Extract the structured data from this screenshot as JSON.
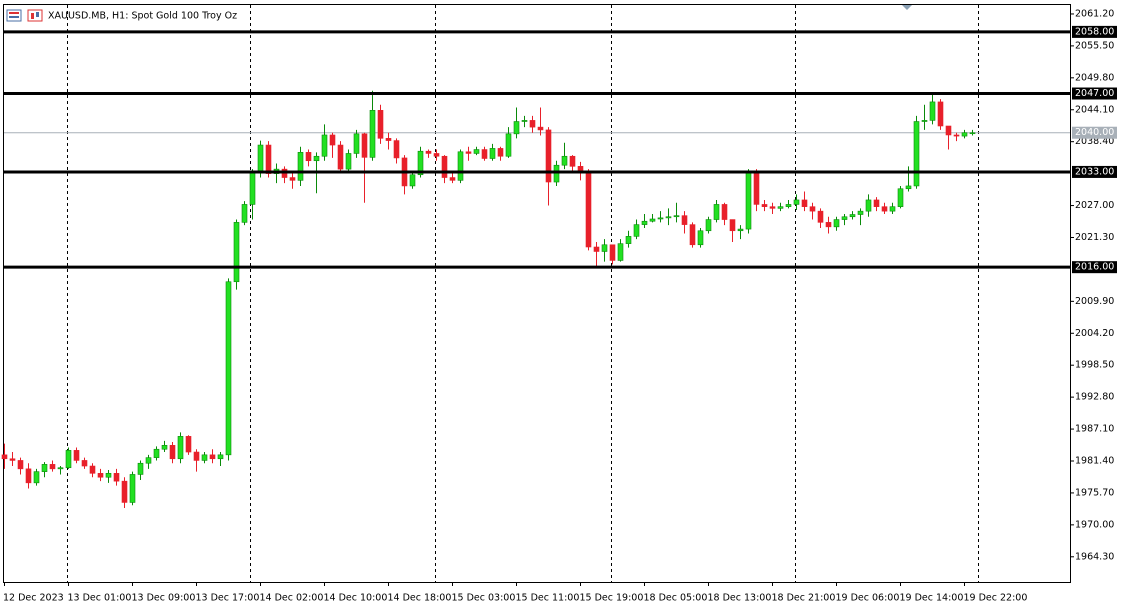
{
  "chart_data": {
    "type": "candlestick",
    "title": "XAUUSD.MB, H1:  Spot Gold 100 Troy Oz",
    "categories": [
      "12 Dec 2023",
      null,
      null,
      null,
      null,
      null,
      null,
      null,
      "13 Dec 01:00",
      null,
      null,
      null,
      null,
      null,
      null,
      null,
      "13 Dec 09:00",
      null,
      null,
      null,
      null,
      null,
      null,
      null,
      "13 Dec 17:00",
      null,
      null,
      null,
      null,
      null,
      null,
      null,
      "14 Dec 02:00",
      null,
      null,
      null,
      null,
      null,
      null,
      null,
      "14 Dec 10:00",
      null,
      null,
      null,
      null,
      null,
      null,
      null,
      "14 Dec 18:00",
      null,
      null,
      null,
      null,
      null,
      null,
      null,
      "15 Dec 03:00",
      null,
      null,
      null,
      null,
      null,
      null,
      null,
      "15 Dec 11:00",
      null,
      null,
      null,
      null,
      null,
      null,
      null,
      "15 Dec 19:00",
      null,
      null,
      null,
      null,
      null,
      null,
      null,
      "18 Dec 05:00",
      null,
      null,
      null,
      null,
      null,
      null,
      null,
      "18 Dec 13:00",
      null,
      null,
      null,
      null,
      null,
      null,
      null,
      "18 Dec 21:00",
      null,
      null,
      null,
      null,
      null,
      null,
      null,
      "19 Dec 06:00",
      null,
      null,
      null,
      null,
      null,
      null,
      null,
      "19 Dec 14:00",
      null,
      null,
      null,
      null,
      null,
      null,
      null,
      "19 Dec 22:00",
      null
    ],
    "open": [
      1982.5,
      1981.8,
      1981.5,
      1980,
      1977.5,
      1979.5,
      1980.8,
      1980,
      1980.2,
      1983.3,
      1981.5,
      1980.5,
      1979.2,
      1978.5,
      1979.2,
      1977.8,
      1974,
      1979,
      1981,
      1982,
      1983.5,
      1984.2,
      1981.8,
      1985.8,
      1983,
      1981.5,
      1982.5,
      1981.8,
      1982.5,
      2013.4,
      2024,
      2027.2,
      2033,
      2037.8,
      2032.7,
      2033.5,
      2032,
      2031.5,
      2036.5,
      2035,
      2035.8,
      2039.6,
      2037.8,
      2033.5,
      2036.3,
      2039.8,
      2035.6,
      2044,
      2039,
      2038.6,
      2035.5,
      2030.5,
      2032.5,
      2036.7,
      2036.3,
      2035.8,
      2032,
      2031.5,
      2036.6,
      2036.3,
      2037,
      2035.4,
      2037.2,
      2035.8,
      2039.8,
      2042,
      2042.2,
      2041,
      2040.5,
      2031.2,
      2034.2,
      2035.8,
      2034,
      2033.2,
      2019.6,
      2018.8,
      2020,
      2017.2,
      2020.2,
      2021.5,
      2023.6,
      2024.2,
      2024.6,
      2024.8,
      2025,
      2025.2,
      2023.6,
      2020,
      2022.5,
      2024.5,
      2027.2,
      2024.5,
      2022.5,
      2022.8,
      2033.2,
      2027.2,
      2026.8,
      2026.5,
      2026.8,
      2027.2,
      2028,
      2026.8,
      2026,
      2024,
      2023.2,
      2024.5,
      2025,
      2025.4,
      2026,
      2028,
      2026.8,
      2026,
      2026.8,
      2030,
      2030.5,
      2042,
      2042.2,
      2045.5,
      2041.2,
      2039.6,
      2039.4,
      2040
    ],
    "high": [
      1984.5,
      1983,
      1982,
      1981,
      1980,
      1981.2,
      1981.5,
      1980.5,
      1983.8,
      1983.8,
      1982,
      1981,
      1980,
      1979.8,
      1980,
      1978.5,
      1979.5,
      1981.5,
      1982.5,
      1984,
      1985,
      1984.8,
      1986.5,
      1986,
      1983.5,
      1983,
      1983.5,
      1983,
      2014,
      2024.5,
      2027.8,
      2033.5,
      2038.6,
      2038.5,
      2034.5,
      2034,
      2033,
      2037.5,
      2037,
      2036.5,
      2041.5,
      2040,
      2038.5,
      2037,
      2040.5,
      2040,
      2047.5,
      2045,
      2040,
      2039,
      2036,
      2033,
      2037.5,
      2037,
      2037,
      2036,
      2033,
      2037,
      2037.5,
      2037.5,
      2037.5,
      2038,
      2037.5,
      2041,
      2044.5,
      2043,
      2043,
      2044.5,
      2041,
      2035,
      2038.2,
      2036,
      2034.8,
      2033.5,
      2020.5,
      2021,
      2020,
      2021,
      2022.5,
      2024.5,
      2025.5,
      2025.5,
      2026,
      2026.5,
      2027.5,
      2026,
      2024,
      2023,
      2025,
      2028,
      2027.5,
      2024.5,
      2023.5,
      2033.5,
      2033.5,
      2028,
      2027.5,
      2027.5,
      2028,
      2029,
      2029.5,
      2027.5,
      2026.5,
      2025,
      2025,
      2025.5,
      2026,
      2026.5,
      2029,
      2028.5,
      2027.5,
      2027.5,
      2030.5,
      2034,
      2043,
      2045,
      2047,
      2046,
      2041,
      2040,
      2040.5,
      2040.5
    ],
    "low": [
      1980,
      1980.5,
      1979,
      1976.5,
      1977,
      1978.5,
      1979.5,
      1979,
      1980,
      1981,
      1980,
      1978.5,
      1977.8,
      1977.5,
      1977,
      1973,
      1973.5,
      1978,
      1980,
      1981.5,
      1983,
      1981,
      1981,
      1982.5,
      1979.5,
      1981,
      1981,
      1980.5,
      1981.5,
      2012,
      2023.5,
      2024.5,
      2032,
      2032,
      2031,
      2031,
      2030,
      2030.5,
      2034,
      2029.2,
      2035,
      2035.5,
      2033,
      2033,
      2035.5,
      2027.5,
      2035,
      2038,
      2037,
      2034.5,
      2029,
      2030,
      2032,
      2035.5,
      2035,
      2031,
      2031,
      2031,
      2035,
      2036,
      2035,
      2035,
      2035,
      2035.5,
      2039,
      2041,
      2040,
      2039.5,
      2027,
      2030.5,
      2033.5,
      2033,
      2031.5,
      2019,
      2016,
      2017,
      2016.5,
      2017,
      2019.5,
      2021,
      2023,
      2024,
      2024,
      2023.5,
      2024,
      2022,
      2019.5,
      2019.5,
      2022,
      2024,
      2023.5,
      2020.5,
      2021,
      2022,
      2026,
      2026,
      2025.5,
      2026,
      2026.5,
      2026.2,
      2026,
      2024.5,
      2023,
      2022,
      2022.5,
      2023.5,
      2024.5,
      2023.5,
      2025,
      2026,
      2025.5,
      2025.5,
      2026.5,
      2029.5,
      2030,
      2040.5,
      2041.5,
      2040.5,
      2037,
      2038.5,
      2039,
      2039.5
    ],
    "close": [
      1981.8,
      1981.5,
      1980,
      1977.5,
      1979.5,
      1980.8,
      1980,
      1980.2,
      1983.3,
      1981.5,
      1980.5,
      1979.2,
      1978.5,
      1979.2,
      1977.8,
      1974,
      1979,
      1981,
      1982,
      1983.5,
      1984.2,
      1981.8,
      1985.8,
      1983,
      1981.5,
      1982.5,
      1981.8,
      1982.5,
      2013.4,
      2024,
      2027.2,
      2033,
      2037.8,
      2032.7,
      2033.5,
      2032,
      2031.5,
      2036.5,
      2035,
      2035.8,
      2039.6,
      2037.8,
      2033.5,
      2036.3,
      2039.8,
      2035.6,
      2044,
      2039,
      2038.6,
      2035.5,
      2030.5,
      2032.5,
      2036.7,
      2036.3,
      2035.8,
      2032,
      2031.5,
      2036.6,
      2036.3,
      2037,
      2035.4,
      2037.2,
      2035.8,
      2039.8,
      2042,
      2042.2,
      2041,
      2040.5,
      2031.2,
      2034.2,
      2035.8,
      2034,
      2033.2,
      2019.6,
      2018.8,
      2020,
      2017.2,
      2020.2,
      2021.5,
      2023.6,
      2024.2,
      2024.6,
      2024.8,
      2025,
      2025.2,
      2023.6,
      2020,
      2022.5,
      2024.5,
      2027.2,
      2024.5,
      2022.5,
      2022.8,
      2033.2,
      2027.2,
      2026.8,
      2026.5,
      2026.8,
      2027.2,
      2028,
      2026.8,
      2026,
      2024,
      2023.2,
      2024.5,
      2025,
      2025.4,
      2026,
      2028,
      2026.8,
      2026,
      2026.8,
      2030,
      2030.5,
      2042,
      2042.2,
      2045.5,
      2041.2,
      2039.6,
      2039.4,
      2040,
      2040
    ],
    "up_color": "#22e022",
    "down_color": "#e8202a",
    "ylim": [
      1959.8,
      2062.8
    ],
    "yticks": [
      {
        "value": 1964.3,
        "label": "1964.30"
      },
      {
        "value": 1970,
        "label": "1970.00"
      },
      {
        "value": 1975.7,
        "label": "1975.70"
      },
      {
        "value": 1981.4,
        "label": "1981.40"
      },
      {
        "value": 1987.1,
        "label": "1987.10"
      },
      {
        "value": 1992.8,
        "label": "1992.80"
      },
      {
        "value": 1998.5,
        "label": "1998.50"
      },
      {
        "value": 2004.2,
        "label": "2004.20"
      },
      {
        "value": 2009.9,
        "label": "2009.90"
      },
      {
        "value": 2021.3,
        "label": "2021.30"
      },
      {
        "value": 2027,
        "label": "2027.00"
      },
      {
        "value": 2038.4,
        "label": "2038.40"
      },
      {
        "value": 2044.1,
        "label": "2044.10"
      },
      {
        "value": 2049.8,
        "label": "2049.80"
      },
      {
        "value": 2055.5,
        "label": "2055.50"
      },
      {
        "value": 2061.2,
        "label": "2061.20"
      }
    ],
    "levels": [
      {
        "value": 2058,
        "label": "2058.00"
      },
      {
        "value": 2047,
        "label": "2047.00"
      },
      {
        "value": 2033,
        "label": "2033.00"
      },
      {
        "value": 2016,
        "label": "2016.00"
      }
    ],
    "current_price": {
      "value": 2040,
      "label": "2040.00"
    }
  }
}
